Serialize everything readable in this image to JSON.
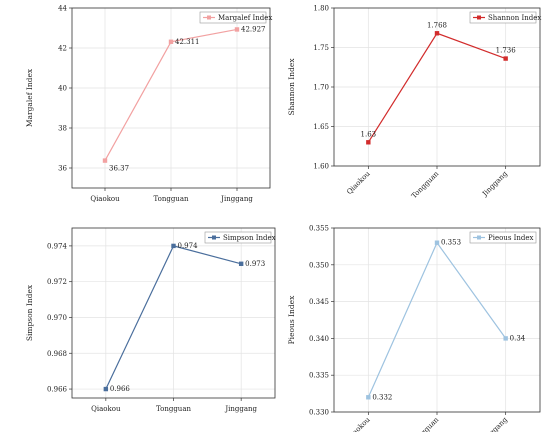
{
  "chart_data": [
    {
      "type": "line",
      "title": "",
      "xlabel": "",
      "ylabel": "Margalef Index",
      "categories": [
        "Qiaokou",
        "Tongguan",
        "Jinggang"
      ],
      "series": [
        {
          "name": "Margalef Index",
          "values": [
            36.37,
            42.311,
            42.927
          ],
          "color": "#f2a1a1"
        }
      ],
      "data_labels": [
        "36.37",
        "42.311",
        "42.927"
      ],
      "ylim": [
        35,
        44
      ],
      "yticks": [
        36,
        38,
        40,
        42,
        44
      ],
      "ytick_labels": [
        "36",
        "38",
        "40",
        "42",
        "44"
      ],
      "xtick_rotation": 0,
      "grid": true,
      "legend": "top-right"
    },
    {
      "type": "line",
      "title": "",
      "xlabel": "",
      "ylabel": "Shannon Index",
      "categories": [
        "Qiaokou",
        "Tongguan",
        "Jinggang"
      ],
      "series": [
        {
          "name": "Shannon Index",
          "values": [
            1.63,
            1.768,
            1.736
          ],
          "color": "#d22c2c"
        }
      ],
      "data_labels": [
        "1.63",
        "1.768",
        "1.736"
      ],
      "ylim": [
        1.6,
        1.8
      ],
      "yticks": [
        1.6,
        1.65,
        1.7,
        1.75,
        1.8
      ],
      "ytick_labels": [
        "1.60",
        "1.65",
        "1.70",
        "1.75",
        "1.80"
      ],
      "xtick_rotation": -45,
      "grid": true,
      "legend": "top-right"
    },
    {
      "type": "line",
      "title": "",
      "xlabel": "",
      "ylabel": "Simpson Index",
      "categories": [
        "Qiaokou",
        "Tongguan",
        "Jinggang"
      ],
      "series": [
        {
          "name": "Simpson Index",
          "values": [
            0.966,
            0.974,
            0.973
          ],
          "color": "#4a6e9c"
        }
      ],
      "data_labels": [
        "0.966",
        "0.974",
        "0.973"
      ],
      "ylim": [
        0.9655,
        0.975
      ],
      "yticks": [
        0.966,
        0.968,
        0.97,
        0.972,
        0.974
      ],
      "ytick_labels": [
        "0.966",
        "0.968",
        "0.970",
        "0.972",
        "0.974"
      ],
      "xtick_rotation": 0,
      "grid": true,
      "legend": "top-right"
    },
    {
      "type": "line",
      "title": "",
      "xlabel": "",
      "ylabel": "Pieous Index",
      "categories": [
        "Qiaokou",
        "Tongguan",
        "Jinggang"
      ],
      "series": [
        {
          "name": "Pieous Index",
          "values": [
            0.332,
            0.353,
            0.34
          ],
          "color": "#9ec3e0"
        }
      ],
      "data_labels": [
        "0.332",
        "0.353",
        "0.34"
      ],
      "ylim": [
        0.33,
        0.355
      ],
      "yticks": [
        0.33,
        0.335,
        0.34,
        0.345,
        0.35,
        0.355
      ],
      "ytick_labels": [
        "0.330",
        "0.335",
        "0.340",
        "0.345",
        "0.350",
        "0.355"
      ],
      "xtick_rotation": -45,
      "grid": true,
      "legend": "top-right"
    }
  ]
}
